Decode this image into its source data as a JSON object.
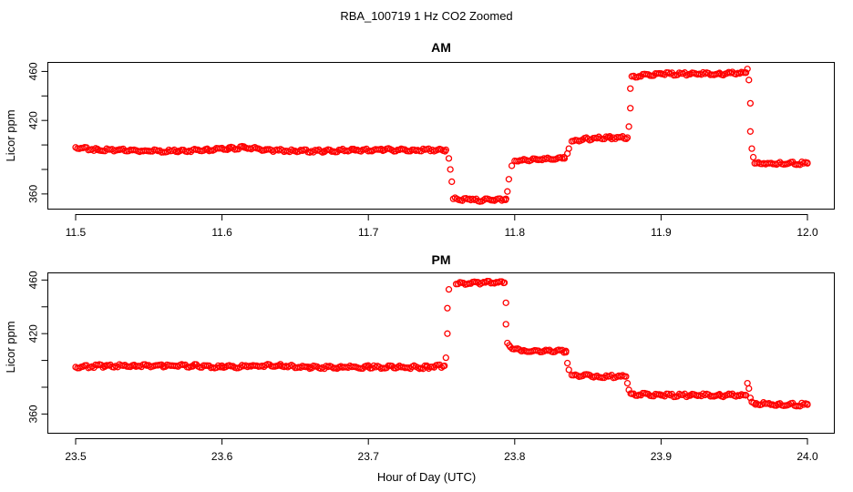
{
  "figure": {
    "title": "RBA_100719  1 Hz CO2 Zoomed",
    "xlabel": "Hour of Day (UTC)"
  },
  "colors": {
    "points": "#ff0000",
    "axis": "#000000"
  },
  "chart_data": [
    {
      "type": "scatter",
      "title": "AM",
      "ylabel": "Licor ppm",
      "xlim": [
        11.5,
        12.0
      ],
      "ylim": [
        348,
        467
      ],
      "xticks": [
        "11.5",
        "11.6",
        "11.7",
        "11.8",
        "11.9",
        "12.0"
      ],
      "yticks": [
        "360",
        "380",
        "400",
        "420",
        "440",
        "460"
      ],
      "yticks_labeled": [
        "360",
        "420",
        "460"
      ],
      "grid": false,
      "series": [
        {
          "values": [
            [
              11.5,
              398
            ],
            [
              11.515,
              396
            ],
            [
              11.53,
              396
            ],
            [
              11.55,
              395
            ],
            [
              11.57,
              395
            ],
            [
              11.59,
              396
            ],
            [
              11.605,
              397
            ],
            [
              11.615,
              398
            ],
            [
              11.63,
              396
            ],
            [
              11.65,
              395
            ],
            [
              11.67,
              395
            ],
            [
              11.69,
              396
            ],
            [
              11.71,
              396
            ],
            [
              11.73,
              396
            ],
            [
              11.753,
              396
            ],
            [
              11.755,
              389
            ],
            [
              11.756,
              380
            ],
            [
              11.757,
              370
            ],
            [
              11.758,
              356
            ],
            [
              11.77,
              355
            ],
            [
              11.785,
              355
            ],
            [
              11.794,
              356
            ],
            [
              11.795,
              362
            ],
            [
              11.796,
              372
            ],
            [
              11.798,
              383
            ],
            [
              11.8,
              387
            ],
            [
              11.815,
              388
            ],
            [
              11.834,
              389
            ],
            [
              11.836,
              393
            ],
            [
              11.837,
              397
            ],
            [
              11.839,
              403
            ],
            [
              11.85,
              405
            ],
            [
              11.865,
              406
            ],
            [
              11.877,
              406
            ],
            [
              11.878,
              415
            ],
            [
              11.879,
              430
            ],
            [
              11.879,
              446
            ],
            [
              11.88,
              456
            ],
            [
              11.9,
              458
            ],
            [
              11.92,
              458
            ],
            [
              11.94,
              458
            ],
            [
              11.958,
              459
            ],
            [
              11.959,
              462
            ],
            [
              11.96,
              453
            ],
            [
              11.961,
              434
            ],
            [
              11.961,
              411
            ],
            [
              11.962,
              397
            ],
            [
              11.963,
              390
            ],
            [
              11.964,
              385
            ],
            [
              11.98,
              385
            ],
            [
              12.0,
              385
            ]
          ]
        }
      ]
    },
    {
      "type": "scatter",
      "title": "PM",
      "ylabel": "Licor ppm",
      "xlim": [
        23.5,
        24.0
      ],
      "ylim": [
        346,
        465
      ],
      "xticks": [
        "23.5",
        "23.6",
        "23.7",
        "23.8",
        "23.9",
        "24.0"
      ],
      "yticks": [
        "360",
        "380",
        "400",
        "420",
        "440",
        "460"
      ],
      "yticks_labeled": [
        "360",
        "420",
        "460"
      ],
      "grid": false,
      "series": [
        {
          "values": [
            [
              23.5,
              395
            ],
            [
              23.52,
              396
            ],
            [
              23.54,
              396
            ],
            [
              23.56,
              396
            ],
            [
              23.58,
              396
            ],
            [
              23.6,
              395
            ],
            [
              23.62,
              396
            ],
            [
              23.64,
              396
            ],
            [
              23.66,
              395
            ],
            [
              23.68,
              395
            ],
            [
              23.7,
              395
            ],
            [
              23.72,
              395
            ],
            [
              23.74,
              395
            ],
            [
              23.752,
              396
            ],
            [
              23.753,
              402
            ],
            [
              23.754,
              420
            ],
            [
              23.754,
              439
            ],
            [
              23.755,
              453
            ],
            [
              23.76,
              457
            ],
            [
              23.775,
              458
            ],
            [
              23.793,
              458
            ],
            [
              23.794,
              443
            ],
            [
              23.794,
              427
            ],
            [
              23.795,
              413
            ],
            [
              23.797,
              410
            ],
            [
              23.805,
              407
            ],
            [
              23.82,
              407
            ],
            [
              23.835,
              407
            ],
            [
              23.836,
              398
            ],
            [
              23.837,
              393
            ],
            [
              23.839,
              389
            ],
            [
              23.855,
              388
            ],
            [
              23.876,
              388
            ],
            [
              23.877,
              383
            ],
            [
              23.878,
              378
            ],
            [
              23.88,
              375
            ],
            [
              23.9,
              374
            ],
            [
              23.92,
              374
            ],
            [
              23.94,
              374
            ],
            [
              23.958,
              374
            ],
            [
              23.959,
              383
            ],
            [
              23.96,
              379
            ],
            [
              23.961,
              372
            ],
            [
              23.962,
              369
            ],
            [
              23.965,
              368
            ],
            [
              23.98,
              367
            ],
            [
              24.0,
              367
            ]
          ]
        }
      ]
    }
  ]
}
